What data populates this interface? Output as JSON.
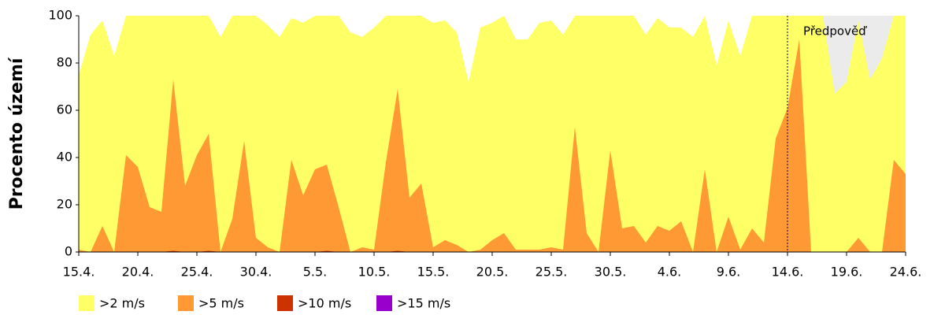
{
  "chart_data": {
    "type": "area",
    "y_label": "Procento území",
    "categories": [
      "15.4.",
      null,
      null,
      null,
      null,
      "20.4.",
      null,
      null,
      null,
      null,
      "25.4.",
      null,
      null,
      null,
      null,
      "30.4.",
      null,
      null,
      null,
      null,
      "5.5.",
      null,
      null,
      null,
      null,
      "10.5.",
      null,
      null,
      null,
      null,
      "15.5.",
      null,
      null,
      null,
      null,
      "20.5.",
      null,
      null,
      null,
      null,
      "25.5.",
      null,
      null,
      null,
      null,
      "30.5.",
      null,
      null,
      null,
      null,
      "4.6.",
      null,
      null,
      null,
      null,
      "9.6.",
      null,
      null,
      null,
      null,
      "14.6.",
      null,
      null,
      null,
      null,
      "19.6.",
      null,
      null,
      null,
      null,
      "24.6."
    ],
    "series": [
      {
        "name": ">2 m/s",
        "color": "#ffff66",
        "values": [
          75,
          92,
          98,
          83,
          100,
          100,
          100,
          100,
          100,
          100,
          100,
          100,
          91,
          100,
          100,
          100,
          96,
          91,
          99,
          97,
          100,
          100,
          100,
          93,
          91,
          95,
          100,
          100,
          100,
          100,
          97,
          98,
          93,
          72,
          95,
          97,
          100,
          90,
          90,
          97,
          98,
          92,
          100,
          100,
          100,
          100,
          100,
          100,
          92,
          99,
          95,
          95,
          91,
          100,
          79,
          98,
          83,
          100,
          100,
          100,
          100,
          100,
          100,
          100,
          67,
          72,
          98,
          73,
          82,
          100,
          100
        ]
      },
      {
        "name": ">5 m/s",
        "color": "#ff9933",
        "values": [
          1,
          0,
          11,
          0,
          41,
          36,
          19,
          17,
          73,
          28,
          41,
          50,
          0,
          14,
          47,
          6,
          2,
          0,
          39,
          24,
          35,
          37,
          19,
          0,
          2,
          1,
          38,
          69,
          23,
          29,
          2,
          5,
          3,
          0,
          1,
          5,
          8,
          1,
          1,
          1,
          2,
          1,
          53,
          8,
          0,
          43,
          10,
          11,
          4,
          11,
          9,
          13,
          0,
          35,
          0,
          15,
          1,
          10,
          4,
          48,
          61,
          90,
          0,
          0,
          0,
          0,
          6,
          0,
          0,
          39,
          33
        ]
      },
      {
        "name": ">10 m/s",
        "color": "#cc3300",
        "values": [
          0,
          0,
          0,
          0,
          0,
          0,
          0,
          0,
          0.5,
          0,
          0,
          0.5,
          0,
          0,
          0,
          0,
          0,
          0,
          0,
          0,
          0,
          0.5,
          0,
          0,
          0,
          0,
          0,
          0.5,
          0,
          0,
          0,
          0,
          0,
          0,
          0,
          0,
          0,
          0,
          0,
          0,
          0,
          0,
          0,
          0,
          0,
          0,
          0,
          0,
          0,
          0,
          0,
          0,
          0,
          0,
          0,
          0,
          0,
          0,
          0,
          0,
          0,
          0,
          0,
          0,
          0,
          0,
          0,
          0,
          0,
          0,
          0
        ]
      },
      {
        "name": ">15 m/s",
        "color": "#9900cc",
        "values": [
          0,
          0,
          0,
          0,
          0,
          0,
          0,
          0,
          0,
          0,
          0,
          0,
          0,
          0,
          0,
          0,
          0,
          0,
          0,
          0,
          0,
          0,
          0,
          0,
          0,
          0,
          0,
          0,
          0,
          0,
          0,
          0,
          0,
          0,
          0,
          0,
          0,
          0,
          0,
          0,
          0,
          0,
          0,
          0,
          0,
          0,
          0,
          0,
          0,
          0,
          0,
          0,
          0,
          0,
          0,
          0,
          0,
          0,
          0,
          0,
          0,
          0,
          0,
          0,
          0,
          0,
          0,
          0,
          0,
          0,
          0
        ]
      }
    ],
    "ylim": [
      0,
      100
    ],
    "yticks": [
      0,
      20,
      40,
      60,
      80,
      100
    ],
    "annotation": {
      "text": "Předpověď",
      "x": "14.6."
    },
    "forecast_shade": "#ebebeb",
    "legend": "bottom"
  }
}
